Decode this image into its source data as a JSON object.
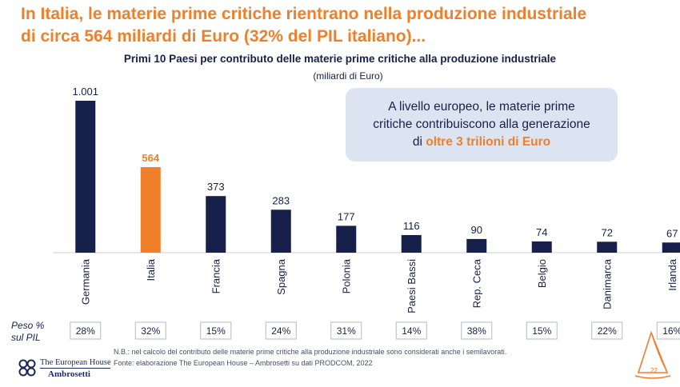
{
  "headline": {
    "line1": "In Italia, le materie prime critiche rientrano nella produzione industriale",
    "line2": "di circa 564 miliardi di Euro (32% del PIL italiano)..."
  },
  "callout": {
    "line1": "A livello europeo, le materie prime",
    "line2": "critiche contribuiscono alla generazione",
    "line3_prefix": "di ",
    "line3_highlight": "oltre 3 trilioni di Euro"
  },
  "chart_data": {
    "type": "bar",
    "title": "Primi 10 Paesi per contributo delle materie prime critiche alla produzione industriale",
    "subtitle": "(miliardi di Euro)",
    "categories": [
      "Germania",
      "Italia",
      "Francia",
      "Spagna",
      "Polonia",
      "Paesi Bassi",
      "Rep. Ceca",
      "Belgio",
      "Danimarca",
      "Irlanda"
    ],
    "values": [
      1001,
      564,
      373,
      283,
      177,
      116,
      90,
      74,
      72,
      67
    ],
    "value_labels": [
      "1.001",
      "564",
      "373",
      "283",
      "177",
      "116",
      "90",
      "74",
      "72",
      "67"
    ],
    "highlight_index": 1,
    "ylim": [
      0,
      1001
    ],
    "colors": {
      "default": "#17204a",
      "highlight": "#f07f2a"
    },
    "peso_pil": [
      "28%",
      "32%",
      "15%",
      "24%",
      "31%",
      "14%",
      "38%",
      "15%",
      "22%",
      "16%"
    ],
    "peso_label_line1": "Peso %",
    "peso_label_line2": "sul PIL"
  },
  "footnotes": {
    "note": "N.B.: nel calcolo del contributo delle materie prime critiche alla produzione industriale sono considerati anche i semilavorati.",
    "source": "Fonte: elaborazione The European House – Ambrosetti su dati PRODCOM, 2022"
  },
  "logo": {
    "line1": "The European House",
    "line2": "Ambrosetti"
  },
  "page_number": "22"
}
